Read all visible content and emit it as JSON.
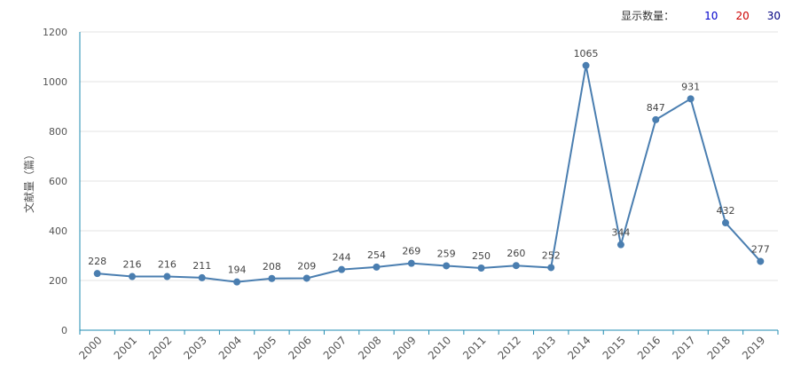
{
  "page_size": {
    "label": "显示数量：",
    "options": [
      {
        "label": "10",
        "color": "#0000cc"
      },
      {
        "label": "20",
        "color": "#cc0000"
      },
      {
        "label": "30",
        "color": "#000080"
      }
    ]
  },
  "colors": {
    "line": "#4a7eb0",
    "axis": "#1f8bb0",
    "grid": "#e3e3e3",
    "text": "#555555"
  },
  "chart_data": {
    "type": "line",
    "title": "",
    "xlabel": "",
    "ylabel": "文献量（篇）",
    "ylim": [
      0,
      1200
    ],
    "yticks": [
      "0",
      "200",
      "400",
      "600",
      "800",
      "1000",
      "1200"
    ],
    "grid": true,
    "categories": [
      "2000",
      "2001",
      "2002",
      "2003",
      "2004",
      "2005",
      "2006",
      "2007",
      "2008",
      "2009",
      "2010",
      "2011",
      "2012",
      "2013",
      "2014",
      "2015",
      "2016",
      "2017",
      "2018",
      "2019"
    ],
    "values": [
      228,
      216,
      216,
      211,
      194,
      208,
      209,
      244,
      254,
      269,
      259,
      250,
      260,
      252,
      1065,
      344,
      847,
      931,
      432,
      277
    ],
    "data_labels": [
      "228",
      "216",
      "216",
      "211",
      "194",
      "208",
      "209",
      "244",
      "254",
      "269",
      "259",
      "250",
      "260",
      "252",
      "1065",
      "344",
      "847",
      "931",
      "432",
      "277"
    ]
  }
}
